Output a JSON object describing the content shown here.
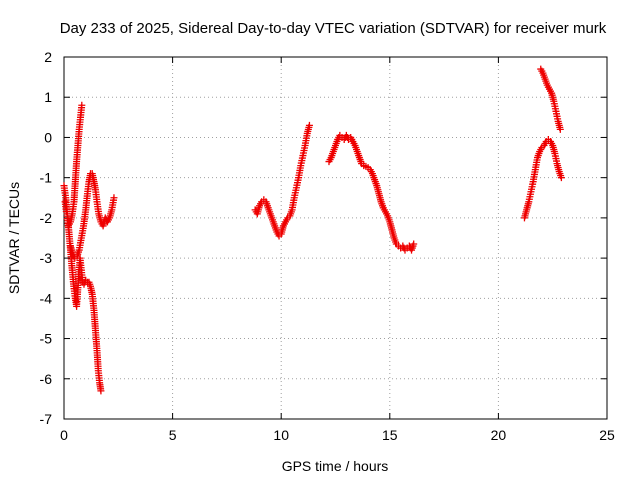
{
  "chart_data": {
    "type": "scatter",
    "title": "Day 233 of 2025, Sidereal Day-to-day VTEC variation (SDTVAR) for receiver murk",
    "xlabel": "GPS time / hours",
    "ylabel": "SDTVAR / TECUs",
    "xlim": [
      0,
      25
    ],
    "ylim": [
      -7,
      2
    ],
    "xticks": [
      0,
      5,
      10,
      15,
      20,
      25
    ],
    "yticks": [
      2,
      1,
      0,
      -1,
      -2,
      -3,
      -4,
      -5,
      -6,
      -7
    ],
    "xtick_labels": [
      "0",
      "5",
      "10",
      "15",
      "20",
      "25"
    ],
    "ytick_labels": [
      "2",
      "1",
      "0",
      "-1",
      "-2",
      "-3",
      "-4",
      "-5",
      "-6",
      "-7"
    ],
    "grid": true,
    "marker": "+",
    "color": "#ee0000",
    "series": [
      {
        "name": "SDTVAR",
        "segments": [
          [
            [
              0.0,
              -1.2
            ],
            [
              0.08,
              -1.5
            ],
            [
              0.15,
              -1.9
            ],
            [
              0.22,
              -2.3
            ],
            [
              0.3,
              -2.8
            ],
            [
              0.38,
              -3.3
            ],
            [
              0.45,
              -3.7
            ],
            [
              0.52,
              -4.0
            ],
            [
              0.58,
              -4.2
            ],
            [
              0.62,
              -3.9
            ],
            [
              0.68,
              -3.4
            ],
            [
              0.74,
              -3.0
            ],
            [
              0.8,
              -3.3
            ],
            [
              0.86,
              -3.6
            ],
            [
              0.92,
              -3.65
            ],
            [
              1.0,
              -3.55
            ],
            [
              1.08,
              -3.6
            ],
            [
              1.15,
              -3.6
            ],
            [
              1.22,
              -3.7
            ],
            [
              1.3,
              -3.9
            ],
            [
              1.38,
              -4.3
            ],
            [
              1.45,
              -4.8
            ],
            [
              1.52,
              -5.3
            ],
            [
              1.58,
              -5.8
            ],
            [
              1.64,
              -6.1
            ],
            [
              1.7,
              -6.3
            ]
          ],
          [
            [
              0.05,
              -1.6
            ],
            [
              0.12,
              -1.9
            ],
            [
              0.2,
              -2.2
            ],
            [
              0.3,
              -2.1
            ],
            [
              0.38,
              -1.9
            ],
            [
              0.46,
              -1.6
            ],
            [
              0.52,
              -1.1
            ],
            [
              0.58,
              -0.6
            ],
            [
              0.64,
              -0.2
            ],
            [
              0.7,
              0.2
            ],
            [
              0.76,
              0.5
            ],
            [
              0.82,
              0.8
            ]
          ],
          [
            [
              0.3,
              -2.7
            ],
            [
              0.4,
              -2.9
            ],
            [
              0.5,
              -3.0
            ],
            [
              0.6,
              -2.95
            ],
            [
              0.7,
              -2.8
            ],
            [
              0.8,
              -2.5
            ],
            [
              0.9,
              -2.2
            ],
            [
              1.0,
              -1.8
            ],
            [
              1.08,
              -1.4
            ],
            [
              1.15,
              -1.1
            ],
            [
              1.22,
              -0.9
            ],
            [
              1.3,
              -0.9
            ],
            [
              1.38,
              -1.1
            ],
            [
              1.45,
              -1.3
            ],
            [
              1.52,
              -1.6
            ],
            [
              1.6,
              -1.9
            ],
            [
              1.7,
              -2.1
            ],
            [
              1.8,
              -2.2
            ],
            [
              1.9,
              -2.0
            ],
            [
              2.0,
              -2.1
            ],
            [
              2.1,
              -2.0
            ],
            [
              2.2,
              -1.8
            ],
            [
              2.3,
              -1.5
            ]
          ],
          [
            [
              8.8,
              -1.8
            ],
            [
              8.9,
              -1.9
            ],
            [
              9.0,
              -1.7
            ],
            [
              9.1,
              -1.6
            ],
            [
              9.2,
              -1.55
            ],
            [
              9.3,
              -1.6
            ],
            [
              9.4,
              -1.75
            ],
            [
              9.5,
              -1.9
            ],
            [
              9.6,
              -2.05
            ],
            [
              9.7,
              -2.2
            ],
            [
              9.8,
              -2.35
            ],
            [
              9.9,
              -2.45
            ],
            [
              10.0,
              -2.4
            ],
            [
              10.1,
              -2.2
            ],
            [
              10.2,
              -2.1
            ],
            [
              10.3,
              -2.0
            ],
            [
              10.4,
              -1.95
            ],
            [
              10.5,
              -1.8
            ],
            [
              10.6,
              -1.5
            ],
            [
              10.7,
              -1.25
            ],
            [
              10.8,
              -1.0
            ],
            [
              10.9,
              -0.7
            ],
            [
              11.0,
              -0.45
            ],
            [
              11.1,
              -0.2
            ],
            [
              11.2,
              0.1
            ],
            [
              11.3,
              0.3
            ]
          ],
          [
            [
              12.2,
              -0.6
            ],
            [
              12.3,
              -0.5
            ],
            [
              12.4,
              -0.35
            ],
            [
              12.5,
              -0.2
            ],
            [
              12.6,
              -0.05
            ],
            [
              12.7,
              0.05
            ],
            [
              12.8,
              0.0
            ],
            [
              12.9,
              -0.05
            ],
            [
              13.0,
              0.05
            ],
            [
              13.1,
              -0.05
            ],
            [
              13.2,
              0.0
            ],
            [
              13.3,
              -0.1
            ],
            [
              13.4,
              -0.2
            ],
            [
              13.5,
              -0.35
            ],
            [
              13.6,
              -0.5
            ],
            [
              13.7,
              -0.65
            ],
            [
              13.8,
              -0.7
            ],
            [
              13.9,
              -0.72
            ],
            [
              14.0,
              -0.75
            ],
            [
              14.1,
              -0.8
            ],
            [
              14.2,
              -0.9
            ],
            [
              14.3,
              -1.05
            ],
            [
              14.4,
              -1.2
            ],
            [
              14.5,
              -1.4
            ],
            [
              14.6,
              -1.6
            ],
            [
              14.7,
              -1.75
            ],
            [
              14.8,
              -1.85
            ],
            [
              14.9,
              -1.95
            ],
            [
              15.0,
              -2.1
            ],
            [
              15.1,
              -2.3
            ],
            [
              15.2,
              -2.5
            ],
            [
              15.3,
              -2.65
            ],
            [
              15.4,
              -2.7
            ],
            [
              15.5,
              -2.75
            ],
            [
              15.6,
              -2.7
            ],
            [
              15.7,
              -2.8
            ],
            [
              15.8,
              -2.75
            ],
            [
              15.9,
              -2.7
            ],
            [
              16.0,
              -2.8
            ],
            [
              16.1,
              -2.65
            ]
          ],
          [
            [
              21.2,
              -2.0
            ],
            [
              21.3,
              -1.8
            ],
            [
              21.4,
              -1.6
            ],
            [
              21.5,
              -1.35
            ],
            [
              21.6,
              -1.1
            ],
            [
              21.7,
              -0.8
            ],
            [
              21.8,
              -0.5
            ],
            [
              21.9,
              -0.35
            ],
            [
              22.0,
              -0.25
            ],
            [
              22.1,
              -0.2
            ],
            [
              22.2,
              -0.1
            ],
            [
              22.3,
              -0.05
            ],
            [
              22.4,
              -0.1
            ],
            [
              22.5,
              -0.2
            ],
            [
              22.6,
              -0.4
            ],
            [
              22.7,
              -0.65
            ],
            [
              22.8,
              -0.85
            ],
            [
              22.9,
              -1.0
            ]
          ],
          [
            [
              21.95,
              1.7
            ],
            [
              22.05,
              1.6
            ],
            [
              22.15,
              1.45
            ],
            [
              22.25,
              1.3
            ],
            [
              22.35,
              1.2
            ],
            [
              22.45,
              1.1
            ],
            [
              22.55,
              0.9
            ],
            [
              22.65,
              0.65
            ],
            [
              22.75,
              0.4
            ],
            [
              22.85,
              0.2
            ]
          ]
        ]
      }
    ]
  }
}
